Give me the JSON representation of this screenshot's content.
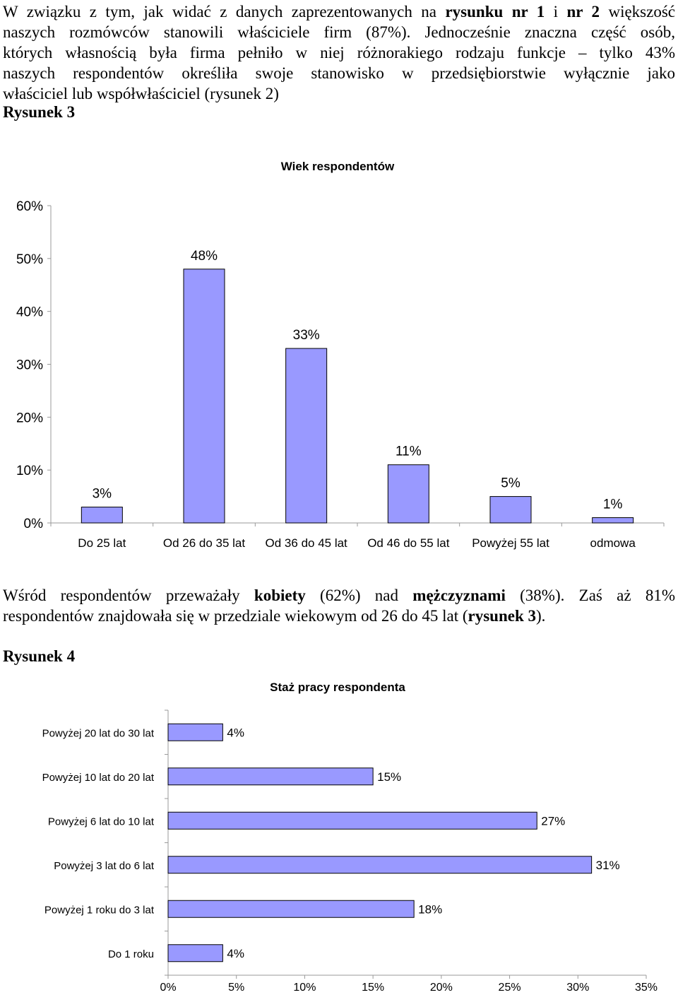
{
  "intro": {
    "lines": [
      [
        {
          "t": "W związku z tym, jak widać z danych zaprezentowanych na "
        },
        {
          "t": "rysunku nr 1",
          "b": true
        },
        {
          "t": " i "
        },
        {
          "t": "nr 2",
          "b": true
        },
        {
          "t": " większość"
        }
      ],
      [
        {
          "t": "naszych rozmówców stanowili właściciele firm (87%). Jednocześnie znaczna część osób,"
        }
      ],
      [
        {
          "t": "których własnością była firma pełniło w niej różnorakiego rodzaju funkcje – tylko 43%"
        }
      ],
      [
        {
          "t": "naszych respondentów określiła swoje stanowisko w przedsiębiorstwie wyłącznie jako"
        }
      ],
      [
        {
          "t": "właściciel lub współwłaściciel (rysunek 2)"
        }
      ]
    ]
  },
  "figure3_heading": "Rysunek 3",
  "middle": {
    "lines": [
      [
        {
          "t": "Wśród respondentów przeważały "
        },
        {
          "t": "kobiety",
          "b": true
        },
        {
          "t": " (62%) nad "
        },
        {
          "t": "mężczyznami",
          "b": true
        },
        {
          "t": " (38%). Zaś aż 81%"
        }
      ],
      [
        {
          "t": "respondentów znajdowała się w przedziale wiekowym od 26 do 45 lat ("
        },
        {
          "t": "rysunek 3",
          "b": true
        },
        {
          "t": ")."
        }
      ]
    ]
  },
  "figure4_heading": "Rysunek 4",
  "chart_data": [
    {
      "type": "bar",
      "orientation": "vertical",
      "title": "Wiek respondentów",
      "categories": [
        "Do 25 lat",
        "Od 26 do 35 lat",
        "Od 36 do 45 lat",
        "Od 46 do 55 lat",
        "Powyżej 55 lat",
        "odmowa"
      ],
      "values": [
        3,
        48,
        33,
        11,
        5,
        1
      ],
      "value_labels": [
        "3%",
        "48%",
        "33%",
        "11%",
        "5%",
        "1%"
      ],
      "ylim": [
        0,
        60
      ],
      "yticks": [
        "0%",
        "10%",
        "20%",
        "30%",
        "40%",
        "50%",
        "60%"
      ],
      "bar_color": "#9999ff",
      "grid": false,
      "legend": "none"
    },
    {
      "type": "bar",
      "orientation": "horizontal",
      "title": "Staż pracy respondenta",
      "categories": [
        "Powyżej 20 lat do 30 lat",
        "Powyżej 10 lat do 20 lat",
        "Powyżej 6 lat do 10 lat",
        "Powyżej 3 lat do 6 lat",
        "Powyżej 1 roku do 3 lat",
        "Do 1 roku"
      ],
      "values": [
        4,
        15,
        27,
        31,
        18,
        4
      ],
      "value_labels": [
        "4%",
        "15%",
        "27%",
        "31%",
        "18%",
        "4%"
      ],
      "xlim": [
        0,
        35
      ],
      "xticks": [
        "0%",
        "5%",
        "10%",
        "15%",
        "20%",
        "25%",
        "30%",
        "35%"
      ],
      "bar_color": "#9999ff",
      "grid": false,
      "legend": "none"
    }
  ]
}
